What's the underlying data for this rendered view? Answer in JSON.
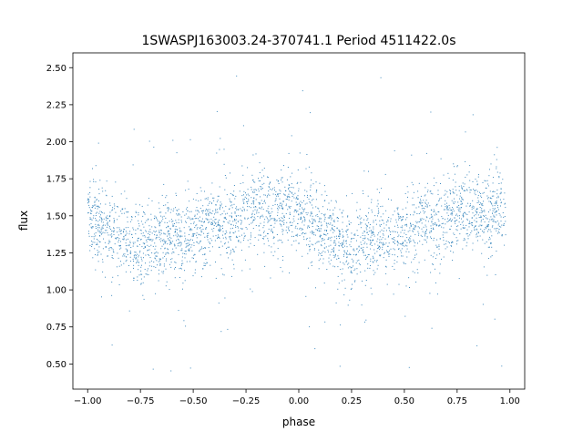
{
  "chart_data": {
    "type": "scatter",
    "title": "1SWASPJ163003.24-370741.1 Period 4511422.0s",
    "xlabel": "phase",
    "ylabel": "flux",
    "xlim": [
      -1.07,
      1.07
    ],
    "ylim": [
      0.33,
      2.6
    ],
    "xticks": [
      -1.0,
      -0.75,
      -0.5,
      -0.25,
      0.0,
      0.25,
      0.5,
      0.75,
      1.0
    ],
    "xtick_labels": [
      "−1.00",
      "−0.75",
      "−0.50",
      "−0.25",
      "0.00",
      "0.25",
      "0.50",
      "0.75",
      "1.00"
    ],
    "yticks": [
      0.5,
      0.75,
      1.0,
      1.25,
      1.5,
      1.75,
      2.0,
      2.25,
      2.5
    ],
    "ytick_labels": [
      "0.50",
      "0.75",
      "1.00",
      "1.25",
      "1.50",
      "1.75",
      "2.00",
      "2.25",
      "2.50"
    ],
    "grid": false,
    "legend": false,
    "series": [
      {
        "color": "#1f77b4",
        "marker": "point",
        "description_values": "folded light curve, phase -1..1 (two cycles); brightness alternates between ~1.5 and ~1.35 with scatter 0.45-2.45",
        "points": [
          {
            "x": -1.0,
            "y": 1.5
          },
          {
            "x": -0.95,
            "y": 1.45
          },
          {
            "x": -0.88,
            "y": 1.38
          },
          {
            "x": -0.82,
            "y": 1.35
          },
          {
            "x": -0.78,
            "y": 1.3
          },
          {
            "x": -0.7,
            "y": 1.33
          },
          {
            "x": -0.62,
            "y": 1.38
          },
          {
            "x": -0.55,
            "y": 1.32
          },
          {
            "x": -0.48,
            "y": 1.38
          },
          {
            "x": -0.4,
            "y": 1.48
          },
          {
            "x": -0.33,
            "y": 1.42
          },
          {
            "x": -0.25,
            "y": 1.52
          },
          {
            "x": -0.18,
            "y": 1.55
          },
          {
            "x": -0.1,
            "y": 1.5
          },
          {
            "x": -0.05,
            "y": 1.55
          },
          {
            "x": 0.0,
            "y": 1.5
          },
          {
            "x": 0.05,
            "y": 1.45
          },
          {
            "x": 0.12,
            "y": 1.38
          },
          {
            "x": 0.18,
            "y": 1.35
          },
          {
            "x": 0.22,
            "y": 1.3
          },
          {
            "x": 0.3,
            "y": 1.33
          },
          {
            "x": 0.38,
            "y": 1.38
          },
          {
            "x": 0.45,
            "y": 1.32
          },
          {
            "x": 0.52,
            "y": 1.38
          },
          {
            "x": 0.6,
            "y": 1.48
          },
          {
            "x": 0.67,
            "y": 1.42
          },
          {
            "x": 0.75,
            "y": 1.52
          },
          {
            "x": 0.82,
            "y": 1.55
          },
          {
            "x": 0.9,
            "y": 1.5
          },
          {
            "x": 0.95,
            "y": 1.55
          },
          {
            "x": 0.98,
            "y": 1.5
          }
        ]
      }
    ]
  }
}
